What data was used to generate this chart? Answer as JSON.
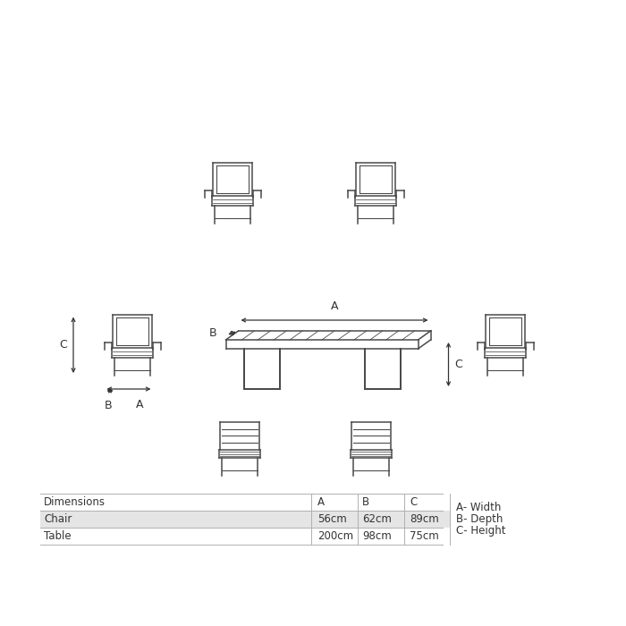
{
  "bg_color": "#ffffff",
  "line_color": "#4a4a4a",
  "line_width": 1.1,
  "arrow_color": "#333333",
  "dim_table": {
    "header_row": [
      "Dimensions",
      "A",
      "B",
      "C"
    ],
    "rows": [
      [
        "Chair",
        "56cm",
        "62cm",
        "89cm"
      ],
      [
        "Table",
        "200cm",
        "98cm",
        "75cm"
      ]
    ],
    "legend": [
      "A- Width",
      "B- Depth",
      "C- Height"
    ]
  },
  "label_fontsize": 9,
  "table_fontsize": 8.5,
  "fig_w": 7.0,
  "fig_h": 7.0,
  "dpi": 100
}
